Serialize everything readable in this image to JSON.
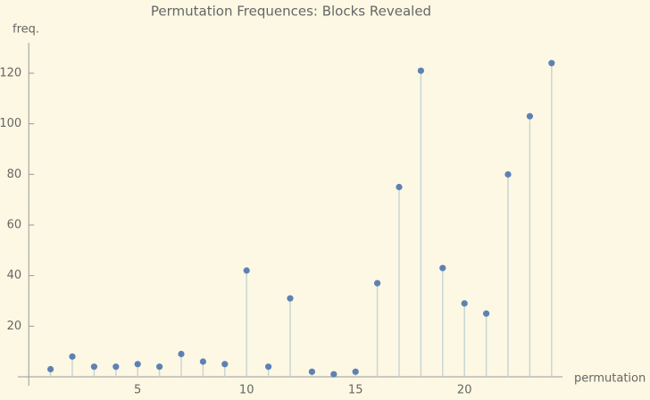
{
  "chart_data": {
    "type": "stem",
    "title": "Permutation Frequences: Blocks Revealed",
    "x_label": "permutation",
    "y_label": "freq.",
    "x": [
      1,
      2,
      3,
      4,
      5,
      6,
      7,
      8,
      9,
      10,
      11,
      12,
      13,
      14,
      15,
      16,
      17,
      18,
      19,
      20,
      21,
      22,
      23,
      24
    ],
    "values": [
      3,
      8,
      4,
      4,
      5,
      4,
      9,
      6,
      5,
      42,
      4,
      31,
      2,
      1,
      2,
      37,
      75,
      121,
      43,
      29,
      25,
      80,
      103,
      124
    ],
    "color": "#5e81b5",
    "stem_color": "#c9d6d6",
    "xlim": [
      -0.5,
      24.5
    ],
    "ylim": [
      0,
      132
    ],
    "xticks": [
      5,
      10,
      15,
      20
    ],
    "yticks": [
      20,
      40,
      60,
      80,
      100,
      120
    ]
  }
}
